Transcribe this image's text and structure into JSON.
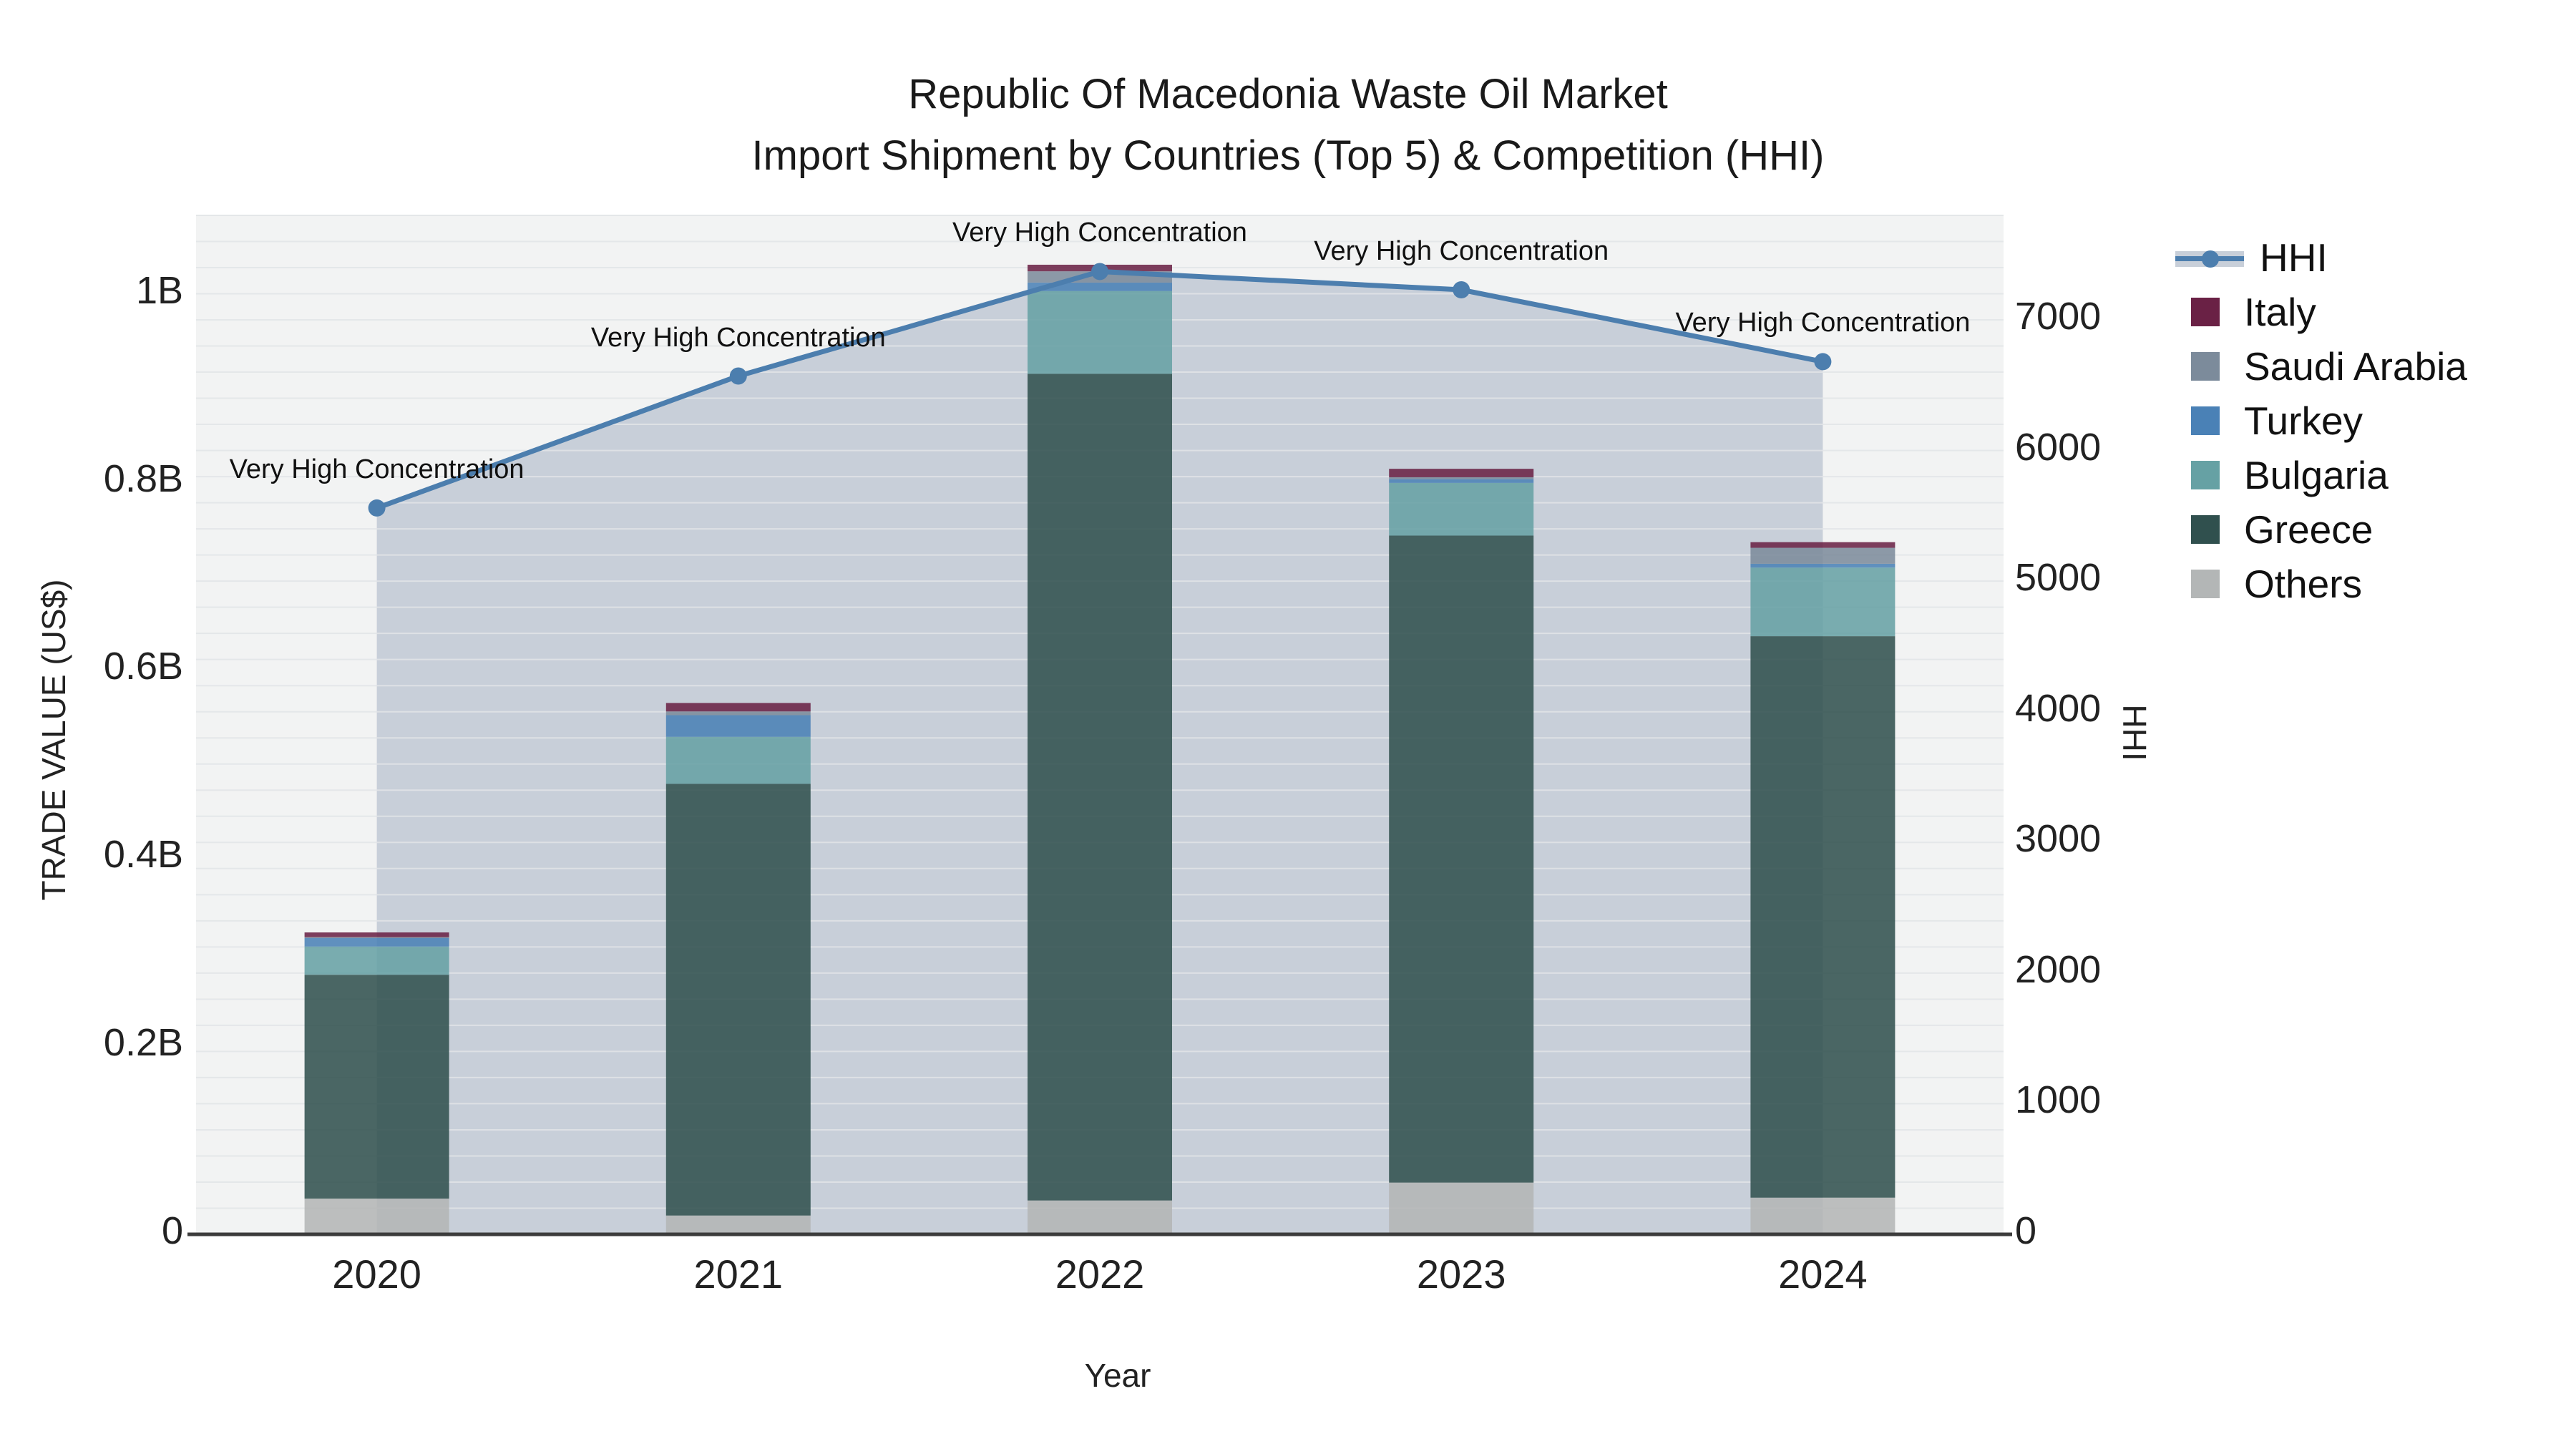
{
  "title": {
    "line1": "Republic Of Macedonia Waste Oil Market",
    "line2": "Import Shipment by Countries (Top 5) & Competition (HHI)"
  },
  "axes": {
    "y_left_title": "TRADE VALUE (US$)",
    "y_right_title": "HHI",
    "x_title": "Year",
    "y_left_ticks": [
      {
        "label": "0",
        "value": 0
      },
      {
        "label": "0.2B",
        "value": 0.2
      },
      {
        "label": "0.4B",
        "value": 0.4
      },
      {
        "label": "0.6B",
        "value": 0.6
      },
      {
        "label": "0.8B",
        "value": 0.8
      },
      {
        "label": "1B",
        "value": 1.0
      }
    ],
    "y_right_ticks": [
      {
        "label": "0",
        "value": 0
      },
      {
        "label": "1000",
        "value": 1000
      },
      {
        "label": "2000",
        "value": 2000
      },
      {
        "label": "3000",
        "value": 3000
      },
      {
        "label": "4000",
        "value": 4000
      },
      {
        "label": "5000",
        "value": 5000
      },
      {
        "label": "6000",
        "value": 6000
      },
      {
        "label": "7000",
        "value": 7000
      }
    ]
  },
  "legend": {
    "items": [
      {
        "label": "HHI",
        "type": "line",
        "color": "#4c7eae"
      },
      {
        "label": "Italy",
        "type": "swatch",
        "color": "#6a2145"
      },
      {
        "label": "Saudi Arabia",
        "type": "swatch",
        "color": "#7c8b9b"
      },
      {
        "label": "Turkey",
        "type": "swatch",
        "color": "#4a81b6"
      },
      {
        "label": "Bulgaria",
        "type": "swatch",
        "color": "#66a1a4"
      },
      {
        "label": "Greece",
        "type": "swatch",
        "color": "#30504e"
      },
      {
        "label": "Others",
        "type": "swatch",
        "color": "#b3b6b6"
      }
    ]
  },
  "chart_data": {
    "type": "bar",
    "subtype": "stacked-bar-with-line",
    "categories": [
      "2020",
      "2021",
      "2022",
      "2023",
      "2024"
    ],
    "bar_unit": "billion US$",
    "stack_order_bottom_to_top": [
      "Others",
      "Greece",
      "Bulgaria",
      "Turkey",
      "Saudi Arabia",
      "Italy"
    ],
    "series": [
      {
        "name": "Italy",
        "color": "#6a2145",
        "values": [
          0.005,
          0.009,
          0.007,
          0.009,
          0.006
        ]
      },
      {
        "name": "Saudi Arabia",
        "color": "#7c8b9b",
        "values": [
          0.001,
          0.004,
          0.012,
          0.002,
          0.017
        ]
      },
      {
        "name": "Turkey",
        "color": "#4a81b6",
        "values": [
          0.009,
          0.023,
          0.009,
          0.004,
          0.004
        ]
      },
      {
        "name": "Bulgaria",
        "color": "#66a1a4",
        "values": [
          0.03,
          0.05,
          0.088,
          0.056,
          0.073
        ]
      },
      {
        "name": "Greece",
        "color": "#30504e",
        "values": [
          0.238,
          0.459,
          0.879,
          0.688,
          0.597
        ]
      },
      {
        "name": "Others",
        "color": "#b3b6b6",
        "values": [
          0.038,
          0.02,
          0.036,
          0.055,
          0.039
        ]
      }
    ],
    "bar_totals": [
      0.321,
      0.565,
      1.031,
      0.814,
      0.736
    ],
    "line_series": {
      "name": "HHI",
      "color": "#4c7eae",
      "band_fill": "#c8cfd9",
      "values": [
        5560,
        6570,
        7370,
        7230,
        6680
      ]
    },
    "annotations": [
      {
        "x": "2020",
        "text": "Very High Concentration"
      },
      {
        "x": "2021",
        "text": "Very High Concentration"
      },
      {
        "x": "2022",
        "text": "Very High Concentration"
      },
      {
        "x": "2023",
        "text": "Very High Concentration"
      },
      {
        "x": "2024",
        "text": "Very High Concentration"
      }
    ],
    "y_left_range": [
      0,
      1.084
    ],
    "y_right_range": [
      0,
      7804
    ],
    "plot_bg": "#f2f3f3",
    "grid": "minor horizontal, very faint",
    "legend_position": "right"
  }
}
